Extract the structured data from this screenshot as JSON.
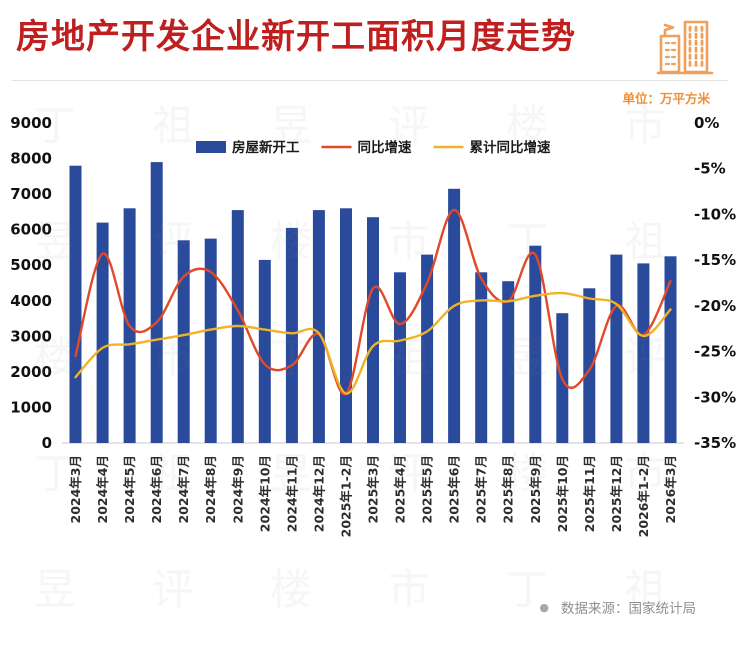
{
  "header": {
    "title": "房地产开发企业新开工面积月度走势",
    "unit_label": "单位：万平方米"
  },
  "watermark": {
    "text": "丁祖昱评楼市"
  },
  "footer": {
    "bullet": "●",
    "source": "数据来源：国家统计局"
  },
  "colors": {
    "title": "#c01f1f",
    "unit_label": "#ef8f3c",
    "bar": "#2a4a9c",
    "yoy_line": "#e0492a",
    "cum_line": "#efb327",
    "source_text": "#8f8f8f"
  },
  "chart_data": {
    "type": "bar",
    "title": "房地产开发企业新开工面积月度走势",
    "unit": "万平方米",
    "grid": false,
    "legend_position": "top-center",
    "categories": [
      "2024年3月",
      "2024年4月",
      "2024年5月",
      "2024年6月",
      "2024年7月",
      "2024年8月",
      "2024年9月",
      "2024年10月",
      "2024年11月",
      "2024年12月",
      "2025年1-2月",
      "2025年3月",
      "2025年4月",
      "2025年5月",
      "2025年6月",
      "2025年7月",
      "2025年8月",
      "2025年9月",
      "2025年10月",
      "2025年11月",
      "2025年12月",
      "2026年1-2月",
      "2026年3月"
    ],
    "series": [
      {
        "name": "房屋新开工",
        "type": "bar",
        "axis": "left",
        "color": "#2a4a9c",
        "values": [
          7800,
          6200,
          6600,
          7900,
          5700,
          5750,
          6550,
          5150,
          6050,
          6550,
          6600,
          6350,
          4800,
          5300,
          7150,
          4800,
          4550,
          5550,
          3650,
          4350,
          5300,
          5050,
          5250
        ]
      },
      {
        "name": "同比增速",
        "type": "line",
        "axis": "right",
        "color": "#e0492a",
        "values": [
          -25.5,
          -14.3,
          -22.2,
          -21.8,
          -16.8,
          -16.3,
          -20.5,
          -26.4,
          -26.5,
          -23.1,
          -29.6,
          -18.1,
          -22.0,
          -17.5,
          -9.5,
          -17.0,
          -19.5,
          -14.4,
          -28.0,
          -27.0,
          -20.0,
          -23.2,
          -17.3
        ]
      },
      {
        "name": "累计同比增速",
        "type": "line",
        "axis": "right",
        "color": "#efb327",
        "values": [
          -27.8,
          -24.6,
          -24.2,
          -23.7,
          -23.2,
          -22.6,
          -22.2,
          -22.6,
          -23.0,
          -23.0,
          -29.6,
          -24.4,
          -23.8,
          -22.8,
          -20.0,
          -19.4,
          -19.5,
          -18.9,
          -18.6,
          -19.2,
          -19.8,
          -23.3,
          -20.4
        ]
      }
    ],
    "left_axis": {
      "min": 0,
      "max": 9000,
      "step": 1000,
      "ticks": [
        "0",
        "1000",
        "2000",
        "3000",
        "4000",
        "5000",
        "6000",
        "7000",
        "8000",
        "9000"
      ]
    },
    "right_axis": {
      "min": -35,
      "max": 0,
      "step": -5,
      "ticks": [
        "0%",
        "-5%",
        "-10%",
        "-15%",
        "-20%",
        "-25%",
        "-30%",
        "-35%"
      ]
    }
  }
}
